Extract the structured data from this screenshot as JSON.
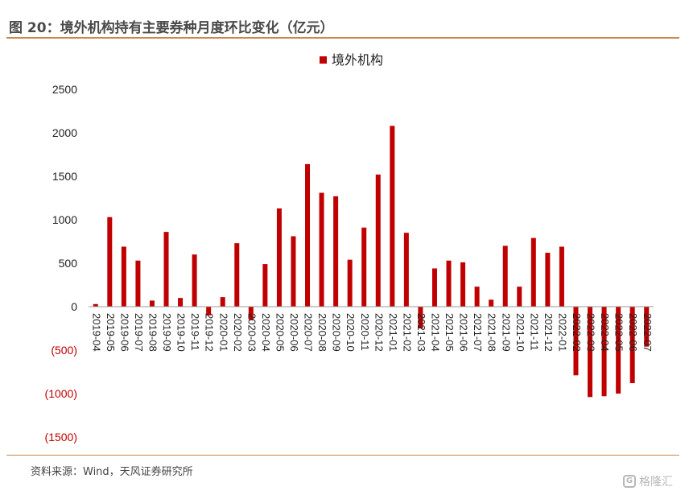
{
  "header": {
    "title": "图 20：境外机构持有主要券种月度环比变化（亿元）"
  },
  "footer": {
    "source": "资料来源：Wind，天风证券研究所"
  },
  "watermark": {
    "text": "格隆汇",
    "icon": "watermark-logo-icon",
    "icon_glyph": "G"
  },
  "colors": {
    "bar": "#c00000",
    "negative_tick": "#c00000",
    "axis_text": "#222222",
    "rule": "#c9884f"
  },
  "chart_data": {
    "type": "bar",
    "title": "",
    "xlabel": "",
    "ylabel": "",
    "ylim": [
      -1500,
      2500
    ],
    "yticks": [
      2500,
      2000,
      1500,
      1000,
      500,
      0,
      -500,
      -1000,
      -1500
    ],
    "ytick_labels": [
      "2500",
      "2000",
      "1500",
      "1000",
      "500",
      "0",
      "(500)",
      "(1000)",
      "(1500)"
    ],
    "legend": "top-center",
    "grid": false,
    "categories": [
      "2019-04",
      "2019-05",
      "2019-06",
      "2019-07",
      "2019-08",
      "2019-09",
      "2019-10",
      "2019-11",
      "2019-12",
      "2020-01",
      "2020-02",
      "2020-03",
      "2020-04",
      "2020-05",
      "2020-06",
      "2020-07",
      "2020-08",
      "2020-09",
      "2020-10",
      "2020-11",
      "2020-12",
      "2021-01",
      "2021-02",
      "2021-03",
      "2021-04",
      "2021-05",
      "2021-06",
      "2021-07",
      "2021-08",
      "2021-09",
      "2021-10",
      "2021-11",
      "2021-12",
      "2022-01",
      "2022-02",
      "2022-03",
      "2022-04",
      "2022-05",
      "2022-06",
      "2022-07"
    ],
    "series": [
      {
        "name": "境外机构",
        "values": [
          30,
          1030,
          690,
          530,
          70,
          860,
          100,
          600,
          -100,
          110,
          730,
          -150,
          490,
          1130,
          810,
          1640,
          1310,
          1270,
          540,
          910,
          1520,
          2080,
          850,
          -250,
          440,
          530,
          510,
          230,
          80,
          700,
          230,
          790,
          620,
          690,
          -790,
          -1040,
          -1030,
          -1000,
          -880,
          -460
        ]
      }
    ]
  }
}
